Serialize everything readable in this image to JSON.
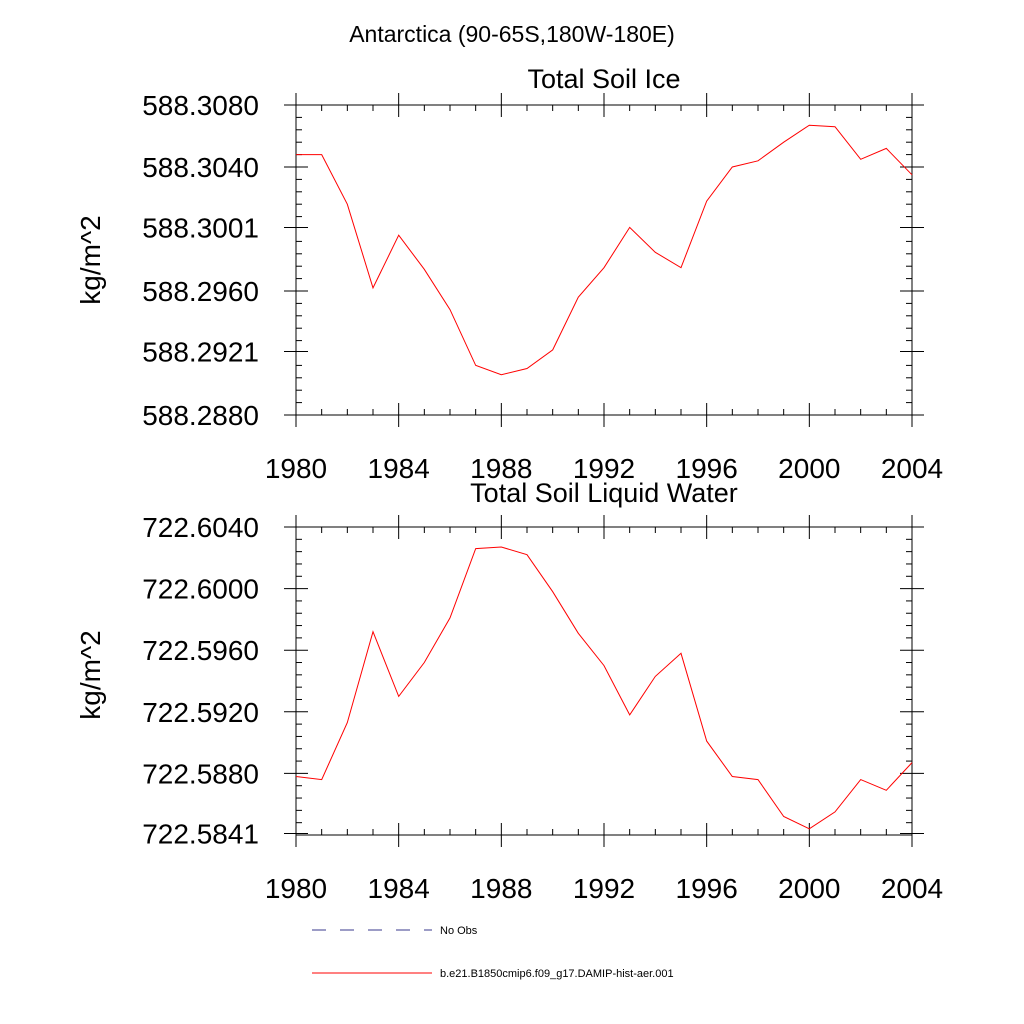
{
  "figure": {
    "title": "Antarctica (90-65S,180W-180E)",
    "colors": {
      "series": "#ff0000",
      "obs": "#3a3a8c",
      "axis": "#000000"
    }
  },
  "chart_data": [
    {
      "type": "line",
      "title": "Total Soil Ice",
      "xlabel": "",
      "ylabel": "kg/m^2",
      "xlim": [
        1980,
        2004
      ],
      "ylim": [
        588.288,
        588.308
      ],
      "x_ticks": [
        1980,
        1984,
        1988,
        1992,
        1996,
        2000,
        2004
      ],
      "x_tick_labels": [
        "1980",
        "1984",
        "1988",
        "1992",
        "1996",
        "2000",
        "2004"
      ],
      "y_ticks": [
        588.288,
        588.2921,
        588.296,
        588.3001,
        588.304,
        588.308
      ],
      "y_tick_labels": [
        "588.2880",
        "588.2921",
        "588.2960",
        "588.3001",
        "588.3040",
        "588.3080"
      ],
      "grid": false,
      "x": [
        1980,
        1981,
        1982,
        1983,
        1984,
        1985,
        1986,
        1987,
        1988,
        1989,
        1990,
        1991,
        1992,
        1993,
        1994,
        1995,
        1996,
        1997,
        1998,
        1999,
        2000,
        2001,
        2002,
        2003,
        2004
      ],
      "series": [
        {
          "name": "b.e21.B1850cmip6.f09_g17.DAMIP-hist-aer.001",
          "values": [
            588.3048,
            588.3048,
            588.3016,
            588.2962,
            588.2996,
            588.2974,
            588.2948,
            588.2912,
            588.2906,
            588.291,
            588.2922,
            588.2956,
            588.2975,
            588.3001,
            588.2985,
            588.2975,
            588.3018,
            588.304,
            588.3044,
            588.3056,
            588.3067,
            588.3066,
            588.3045,
            588.3052,
            588.3035
          ]
        }
      ]
    },
    {
      "type": "line",
      "title": "Total Soil Liquid Water",
      "xlabel": "",
      "ylabel": "kg/m^2",
      "xlim": [
        1980,
        2004
      ],
      "ylim": [
        722.584,
        722.604
      ],
      "x_ticks": [
        1980,
        1984,
        1988,
        1992,
        1996,
        2000,
        2004
      ],
      "x_tick_labels": [
        "1980",
        "1984",
        "1988",
        "1992",
        "1996",
        "2000",
        "2004"
      ],
      "y_ticks": [
        722.5841,
        722.588,
        722.592,
        722.596,
        722.6,
        722.604
      ],
      "y_tick_labels": [
        "722.5841",
        "722.5880",
        "722.5920",
        "722.5960",
        "722.6000",
        "722.6040"
      ],
      "grid": false,
      "x": [
        1980,
        1981,
        1982,
        1983,
        1984,
        1985,
        1986,
        1987,
        1988,
        1989,
        1990,
        1991,
        1992,
        1993,
        1994,
        1995,
        1996,
        1997,
        1998,
        1999,
        2000,
        2001,
        2002,
        2003,
        2004
      ],
      "series": [
        {
          "name": "b.e21.B1850cmip6.f09_g17.DAMIP-hist-aer.001",
          "values": [
            722.5878,
            722.5876,
            722.5913,
            722.5972,
            722.593,
            722.5952,
            722.5981,
            722.6026,
            722.6027,
            722.6022,
            722.5998,
            722.5971,
            722.595,
            722.5918,
            722.5943,
            722.5958,
            722.5901,
            722.5878,
            722.5876,
            722.5852,
            722.5844,
            722.5855,
            722.5876,
            722.5869,
            722.5887
          ]
        }
      ]
    }
  ],
  "legend": {
    "items": [
      {
        "label": "No Obs",
        "style": "dashed"
      },
      {
        "label": "b.e21.B1850cmip6.f09_g17.DAMIP-hist-aer.001",
        "style": "solid"
      }
    ]
  }
}
